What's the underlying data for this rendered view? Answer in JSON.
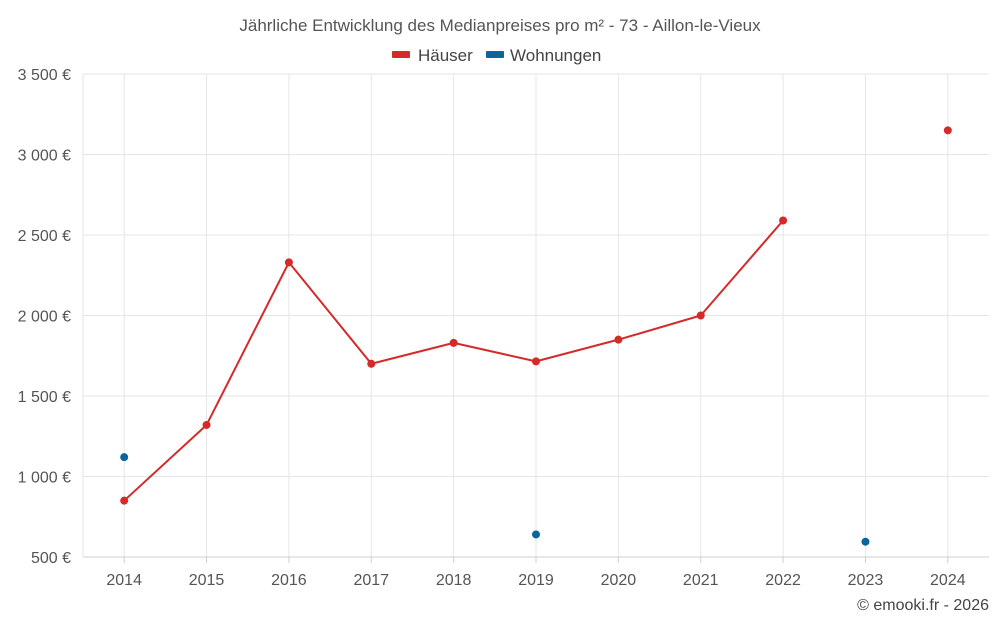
{
  "chart_data": {
    "type": "line",
    "title": "Jährliche Entwicklung des Medianpreises pro m² - 73 - Aillon-le-Vieux",
    "categories": [
      "2014",
      "2015",
      "2016",
      "2017",
      "2018",
      "2019",
      "2020",
      "2021",
      "2022",
      "2023",
      "2024"
    ],
    "y_ticks": [
      "500 €",
      "1 000 €",
      "1 500 €",
      "2 000 €",
      "2 500 €",
      "3 000 €",
      "3 500 €"
    ],
    "ylim": [
      500,
      3500
    ],
    "grid": true,
    "legend_position": "top-center",
    "series": [
      {
        "name": "Häuser",
        "color": "#d42a2a",
        "values": [
          850,
          1320,
          2330,
          1700,
          1830,
          1715,
          1850,
          2000,
          2590,
          null,
          3150
        ]
      },
      {
        "name": "Wohnungen",
        "color": "#0a64a0",
        "values": [
          1120,
          null,
          null,
          null,
          null,
          640,
          null,
          null,
          null,
          595,
          null
        ]
      }
    ],
    "credit": "© emooki.fr - 2026"
  }
}
